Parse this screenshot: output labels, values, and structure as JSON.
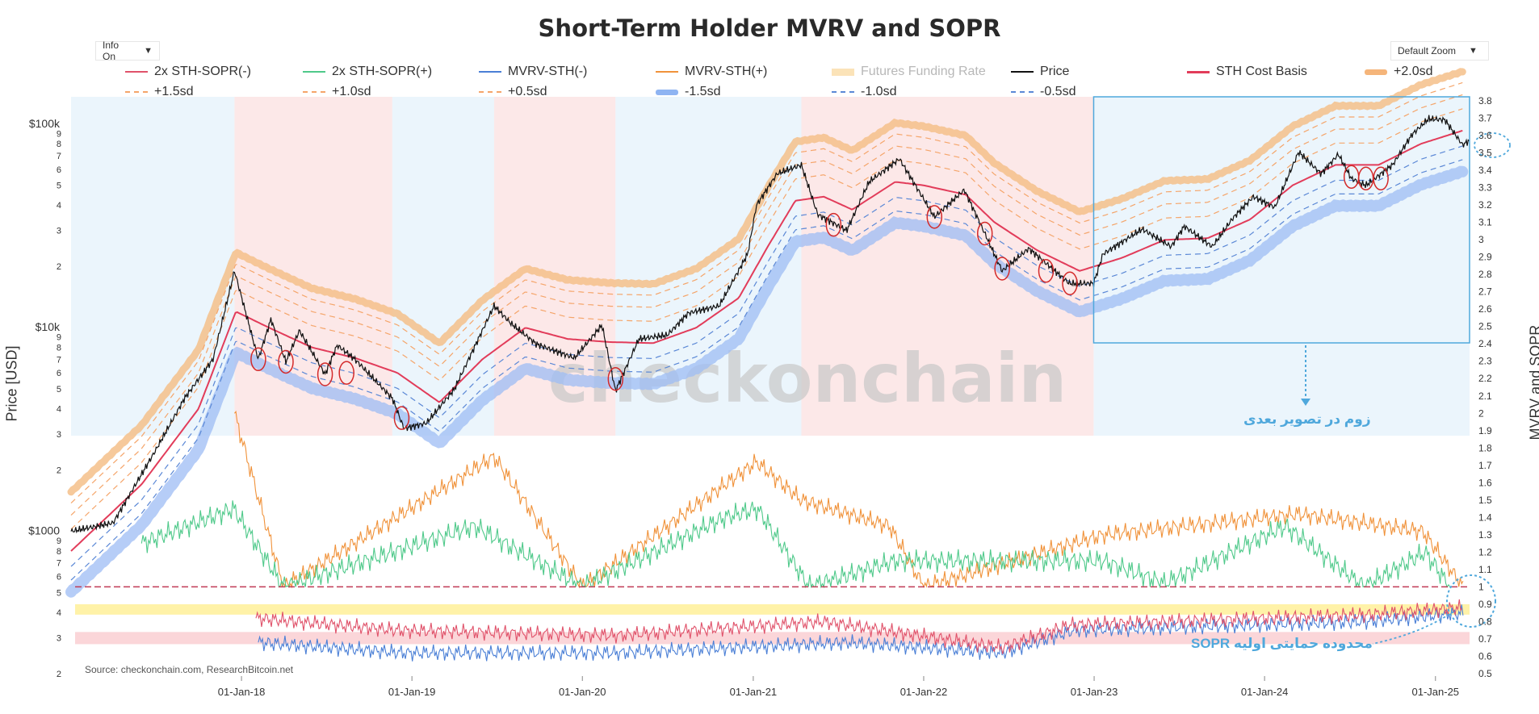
{
  "title": "Short-Term Holder MVRV and SOPR",
  "controls": {
    "info": "Info On",
    "zoom": "Default Zoom"
  },
  "legend": [
    {
      "label": "2x STH-SOPR(-)",
      "color": "#e0526a",
      "style": "line"
    },
    {
      "label": "2x STH-SOPR(+)",
      "color": "#4fc98a",
      "style": "line"
    },
    {
      "label": "MVRV-STH(-)",
      "color": "#4a7fd6",
      "style": "line"
    },
    {
      "label": "MVRV-STH(+)",
      "color": "#f0923a",
      "style": "line"
    },
    {
      "label": "Futures Funding Rate",
      "color": "#fbe3b8",
      "style": "band",
      "faded": true
    },
    {
      "label": "Price",
      "color": "#111111",
      "style": "line"
    },
    {
      "label": "STH Cost Basis",
      "color": "#e23c5a",
      "style": "thick"
    },
    {
      "label": "+2.0sd",
      "color": "#f5b57a",
      "style": "fuzzy"
    },
    {
      "label": "+1.5sd",
      "color": "#f5a56a",
      "style": "dash"
    },
    {
      "label": "+1.0sd",
      "color": "#f5a56a",
      "style": "dash"
    },
    {
      "label": "+0.5sd",
      "color": "#f5a56a",
      "style": "dash"
    },
    {
      "label": "-1.5sd",
      "color": "#8fb4f2",
      "style": "fuzzy"
    },
    {
      "label": "-1.0sd",
      "color": "#5b88d6",
      "style": "dash"
    },
    {
      "label": "-0.5sd",
      "color": "#5b88d6",
      "style": "dash"
    }
  ],
  "axes": {
    "left_label": "Price [USD]",
    "right_label": "MVRV and SOPR",
    "left_ticks": [
      "$100k",
      "9",
      "8",
      "7",
      "6",
      "5",
      "4",
      "3",
      "2",
      "$10k",
      "9",
      "8",
      "7",
      "6",
      "5",
      "4",
      "3",
      "2",
      "$1000",
      "9",
      "8",
      "7",
      "6",
      "5",
      "4",
      "3",
      "2"
    ],
    "right_ticks": [
      "3.8",
      "3.7",
      "3.6",
      "3.5",
      "3.4",
      "3.3",
      "3.2",
      "3.1",
      "3",
      "2.9",
      "2.8",
      "2.7",
      "2.6",
      "2.5",
      "2.4",
      "2.3",
      "2.2",
      "2.1",
      "2",
      "1.9",
      "1.8",
      "1.7",
      "1.6",
      "1.5",
      "1.4",
      "1.3",
      "1.2",
      "1.1",
      "1",
      "0.9",
      "0.8",
      "0.7",
      "0.6",
      "0.5"
    ],
    "x_ticks": [
      "01-Jan-18",
      "01-Jan-19",
      "01-Jan-20",
      "01-Jan-21",
      "01-Jan-22",
      "01-Jan-23",
      "01-Jan-24",
      "01-Jan-25"
    ]
  },
  "watermark": "checkonchain",
  "source": "Source: checkonchain.com, ResearchBitcoin.net",
  "annotations": {
    "zoom_note": "زوم در تصویر بعدی",
    "sopr_note": "محدوده حمایتی اولیه SOPR"
  },
  "chart_data": {
    "type": "line",
    "title": "Short-Term Holder MVRV and SOPR",
    "xlabel": "",
    "ylabel": "Price [USD]",
    "y2label": "MVRV and SOPR",
    "yscale": "log",
    "ylim": [
      200,
      130000
    ],
    "y2lim": [
      0.5,
      3.8
    ],
    "xlim": [
      "2017-01-01",
      "2025-03-15"
    ],
    "grid": false,
    "legend_position": "top",
    "series": [
      {
        "name": "Price",
        "axis": "left",
        "points": [
          [
            "2017-01-01",
            1000
          ],
          [
            "2017-04-01",
            1100
          ],
          [
            "2017-07-01",
            2500
          ],
          [
            "2017-09-01",
            4500
          ],
          [
            "2017-11-01",
            7000
          ],
          [
            "2017-12-17",
            19000
          ],
          [
            "2018-02-06",
            7000
          ],
          [
            "2018-03-05",
            11000
          ],
          [
            "2018-04-06",
            6800
          ],
          [
            "2018-05-05",
            9700
          ],
          [
            "2018-06-29",
            5900
          ],
          [
            "2018-07-25",
            8200
          ],
          [
            "2018-09-01",
            7000
          ],
          [
            "2018-11-20",
            4500
          ],
          [
            "2018-12-15",
            3200
          ],
          [
            "2019-02-01",
            3400
          ],
          [
            "2019-04-02",
            5000
          ],
          [
            "2019-06-26",
            12800
          ],
          [
            "2019-08-01",
            10500
          ],
          [
            "2019-09-25",
            8300
          ],
          [
            "2019-12-15",
            7100
          ],
          [
            "2020-02-12",
            10300
          ],
          [
            "2020-03-12",
            4900
          ],
          [
            "2020-05-01",
            8800
          ],
          [
            "2020-07-01",
            9200
          ],
          [
            "2020-08-15",
            11800
          ],
          [
            "2020-10-20",
            12800
          ],
          [
            "2020-12-20",
            23000
          ],
          [
            "2021-01-08",
            40000
          ],
          [
            "2021-02-21",
            57000
          ],
          [
            "2021-04-14",
            63000
          ],
          [
            "2021-05-19",
            36000
          ],
          [
            "2021-07-20",
            30000
          ],
          [
            "2021-09-06",
            52000
          ],
          [
            "2021-11-10",
            67500
          ],
          [
            "2022-01-24",
            35000
          ],
          [
            "2022-03-29",
            47500
          ],
          [
            "2022-05-12",
            29000
          ],
          [
            "2022-06-18",
            19000
          ],
          [
            "2022-08-14",
            24500
          ],
          [
            "2022-11-09",
            16500
          ],
          [
            "2022-12-31",
            16500
          ],
          [
            "2023-01-20",
            23000
          ],
          [
            "2023-04-14",
            30500
          ],
          [
            "2023-06-15",
            25000
          ],
          [
            "2023-07-13",
            31500
          ],
          [
            "2023-09-11",
            25000
          ],
          [
            "2023-10-25",
            34500
          ],
          [
            "2023-12-08",
            44000
          ],
          [
            "2024-01-23",
            39000
          ],
          [
            "2024-03-14",
            73000
          ],
          [
            "2024-05-01",
            57000
          ],
          [
            "2024-06-07",
            71000
          ],
          [
            "2024-07-05",
            54000
          ],
          [
            "2024-08-05",
            50000
          ],
          [
            "2024-10-01",
            63000
          ],
          [
            "2024-11-12",
            89000
          ],
          [
            "2024-12-17",
            106000
          ],
          [
            "2025-01-21",
            105000
          ],
          [
            "2025-02-28",
            79000
          ],
          [
            "2025-03-15",
            83000
          ]
        ]
      },
      {
        "name": "STH Cost Basis",
        "axis": "left",
        "points": [
          [
            "2017-01-01",
            800
          ],
          [
            "2017-06-01",
            1700
          ],
          [
            "2017-10-01",
            4000
          ],
          [
            "2017-12-20",
            12000
          ],
          [
            "2018-03-01",
            10000
          ],
          [
            "2018-06-01",
            8000
          ],
          [
            "2018-09-01",
            7100
          ],
          [
            "2018-12-01",
            6000
          ],
          [
            "2019-03-01",
            4300
          ],
          [
            "2019-06-01",
            7000
          ],
          [
            "2019-09-01",
            10000
          ],
          [
            "2019-12-01",
            8800
          ],
          [
            "2020-03-01",
            8500
          ],
          [
            "2020-06-01",
            8400
          ],
          [
            "2020-09-01",
            10000
          ],
          [
            "2020-12-01",
            14000
          ],
          [
            "2021-02-01",
            25000
          ],
          [
            "2021-04-01",
            42000
          ],
          [
            "2021-06-01",
            44000
          ],
          [
            "2021-08-01",
            38000
          ],
          [
            "2021-11-01",
            52000
          ],
          [
            "2022-01-01",
            50000
          ],
          [
            "2022-04-01",
            45000
          ],
          [
            "2022-06-01",
            33000
          ],
          [
            "2022-09-01",
            24000
          ],
          [
            "2022-12-01",
            19000
          ],
          [
            "2023-03-01",
            22000
          ],
          [
            "2023-06-01",
            27000
          ],
          [
            "2023-09-01",
            27500
          ],
          [
            "2023-12-01",
            34000
          ],
          [
            "2024-03-01",
            50000
          ],
          [
            "2024-06-01",
            63000
          ],
          [
            "2024-09-01",
            63000
          ],
          [
            "2024-12-01",
            80000
          ],
          [
            "2025-03-01",
            93000
          ]
        ]
      },
      {
        "name": "2x STH-SOPR(+)",
        "axis": "right",
        "points": [
          [
            "2017-06-01",
            1.25
          ],
          [
            "2017-12-15",
            1.45
          ],
          [
            "2018-04-01",
            1.0
          ],
          [
            "2019-05-15",
            1.35
          ],
          [
            "2020-01-01",
            1.0
          ],
          [
            "2020-11-01",
            1.4
          ],
          [
            "2021-01-10",
            1.45
          ],
          [
            "2021-05-01",
            1.0
          ],
          [
            "2021-11-01",
            1.15
          ],
          [
            "2023-01-20",
            1.15
          ],
          [
            "2023-06-01",
            1.02
          ],
          [
            "2024-02-15",
            1.35
          ],
          [
            "2024-08-01",
            1.0
          ],
          [
            "2024-12-10",
            1.2
          ],
          [
            "2025-02-01",
            1.0
          ]
        ]
      },
      {
        "name": "2x STH-SOPR(-)",
        "axis": "right",
        "points": [
          [
            "2018-02-01",
            0.82
          ],
          [
            "2018-12-01",
            0.75
          ],
          [
            "2020-03-12",
            0.72
          ],
          [
            "2021-06-01",
            0.8
          ],
          [
            "2022-06-18",
            0.65
          ],
          [
            "2022-11-10",
            0.78
          ],
          [
            "2024-08-05",
            0.84
          ],
          [
            "2025-03-01",
            0.88
          ]
        ]
      },
      {
        "name": "MVRV-STH(+)",
        "axis": "right",
        "points": [
          [
            "2017-12-17",
            2.0
          ],
          [
            "2018-04-01",
            1.0
          ],
          [
            "2019-06-26",
            1.75
          ],
          [
            "2020-01-01",
            1.0
          ],
          [
            "2021-01-08",
            1.72
          ],
          [
            "2021-04-14",
            1.5
          ],
          [
            "2021-10-20",
            1.35
          ],
          [
            "2022-01-01",
            1.0
          ],
          [
            "2023-01-20",
            1.3
          ],
          [
            "2024-03-14",
            1.42
          ],
          [
            "2024-12-05",
            1.32
          ],
          [
            "2025-03-01",
            1.0
          ]
        ]
      },
      {
        "name": "MVRV-STH(-)",
        "axis": "right",
        "points": [
          [
            "2018-02-06",
            0.68
          ],
          [
            "2018-12-15",
            0.62
          ],
          [
            "2020-03-12",
            0.62
          ],
          [
            "2021-07-20",
            0.68
          ],
          [
            "2022-06-18",
            0.62
          ],
          [
            "2022-11-20",
            0.75
          ],
          [
            "2024-08-05",
            0.8
          ],
          [
            "2025-03-01",
            0.85
          ]
        ]
      }
    ],
    "reference_bands": [
      {
        "name": "SOPR support zone",
        "y2": [
          0.84,
          0.9
        ],
        "color": "#fff2a8"
      },
      {
        "name": "capitulation zone",
        "y2": [
          0.67,
          0.74
        ],
        "color": "#fbd6d9"
      }
    ],
    "regime_shading": [
      {
        "from": "2017-01-01",
        "to": "2017-12-17",
        "regime": "bull",
        "color": "#e6f2fb"
      },
      {
        "from": "2017-12-17",
        "to": "2018-11-20",
        "regime": "bear",
        "color": "#fbe2e2"
      },
      {
        "from": "2018-11-20",
        "to": "2019-06-26",
        "regime": "bull",
        "color": "#e6f2fb"
      },
      {
        "from": "2019-06-26",
        "to": "2020-03-12",
        "regime": "bear",
        "color": "#fbe2e2"
      },
      {
        "from": "2020-03-12",
        "to": "2021-04-14",
        "regime": "bull",
        "color": "#e6f2fb"
      },
      {
        "from": "2021-04-14",
        "to": "2022-12-31",
        "regime": "bear",
        "color": "#fbe2e2"
      },
      {
        "from": "2022-12-31",
        "to": "2025-03-15",
        "regime": "bull",
        "color": "#e6f2fb"
      }
    ],
    "highlights": [
      {
        "type": "circle",
        "date": "2018-02-06",
        "price": 7000
      },
      {
        "type": "circle",
        "date": "2018-04-06",
        "price": 6800
      },
      {
        "type": "circle",
        "date": "2018-06-29",
        "price": 5900
      },
      {
        "type": "circle",
        "date": "2018-08-14",
        "price": 6000
      },
      {
        "type": "circle",
        "date": "2018-12-10",
        "price": 3600
      },
      {
        "type": "circle",
        "date": "2020-03-12",
        "price": 5600
      },
      {
        "type": "circle",
        "date": "2021-06-22",
        "price": 32000
      },
      {
        "type": "circle",
        "date": "2022-01-24",
        "price": 35000
      },
      {
        "type": "circle",
        "date": "2022-05-12",
        "price": 29000
      },
      {
        "type": "circle",
        "date": "2022-06-18",
        "price": 19500
      },
      {
        "type": "circle",
        "date": "2022-09-20",
        "price": 19000
      },
      {
        "type": "circle",
        "date": "2022-11-10",
        "price": 16500
      },
      {
        "type": "circle",
        "date": "2024-07-05",
        "price": 55000
      },
      {
        "type": "circle",
        "date": "2024-08-05",
        "price": 54000
      },
      {
        "type": "circle",
        "date": "2024-09-06",
        "price": 54000
      }
    ]
  }
}
